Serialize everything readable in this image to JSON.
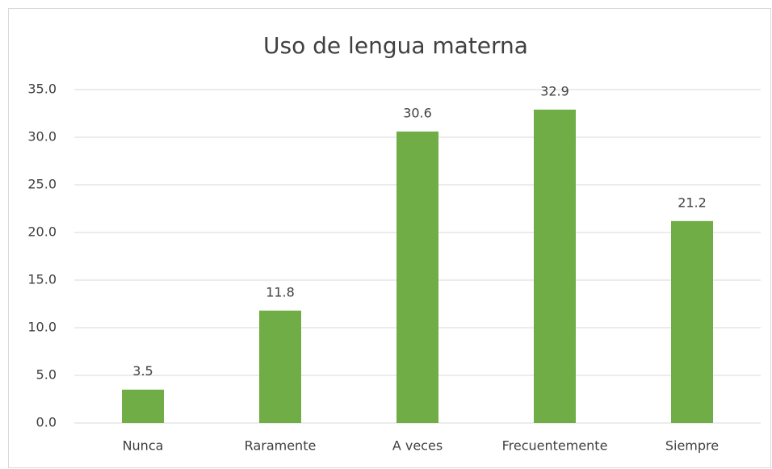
{
  "chart_data": {
    "type": "bar",
    "title": "Uso de lengua materna",
    "categories": [
      "Nunca",
      "Raramente",
      "A veces",
      "Frecuentemente",
      "Siempre"
    ],
    "values": [
      3.5,
      11.8,
      30.6,
      32.9,
      21.2
    ],
    "color": "#70ad47",
    "ylim": [
      0,
      35
    ],
    "yticks": [
      {
        "value": 0,
        "label": "0.0"
      },
      {
        "value": 5,
        "label": "5.0"
      },
      {
        "value": 10,
        "label": "10.0"
      },
      {
        "value": 15,
        "label": "15.0"
      },
      {
        "value": 20,
        "label": "20.0"
      },
      {
        "value": 25,
        "label": "25.0"
      },
      {
        "value": 30,
        "label": "30.0"
      },
      {
        "value": 35,
        "label": "35.0"
      }
    ],
    "grid": true
  }
}
